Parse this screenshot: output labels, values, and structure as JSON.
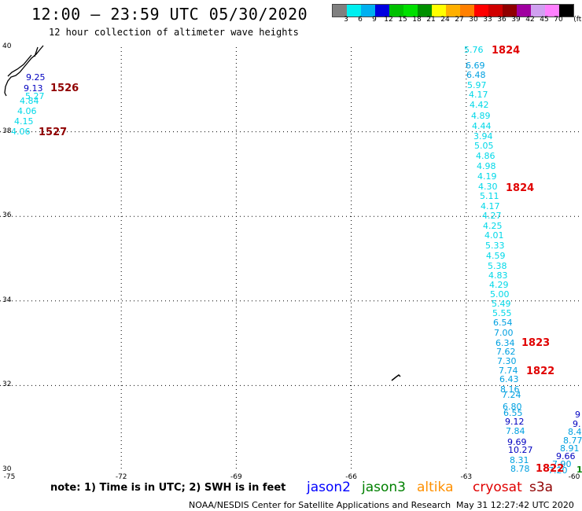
{
  "title": "12:00 – 23:59 UTC 05/30/2020",
  "subtitle": "12 hour collection of altimeter wave heights",
  "legend": {
    "colors": [
      "#808080",
      "#00f0f0",
      "#00b0f0",
      "#0000e0",
      "#00c000",
      "#00e000",
      "#009000",
      "#ffff00",
      "#ffb000",
      "#ff8000",
      "#ff0000",
      "#d00000",
      "#900000",
      "#a000a0",
      "#d0a0f0",
      "#ff80ff",
      "#000000"
    ],
    "ticks": [
      "3",
      "6",
      "9",
      "12",
      "15",
      "18",
      "21",
      "24",
      "27",
      "30",
      "33",
      "36",
      "39",
      "42",
      "45",
      "70",
      "(ft)"
    ]
  },
  "lat_labels": [
    "40",
    "38",
    "36",
    "34",
    "32",
    "30"
  ],
  "lon_labels": [
    "-75",
    "-72",
    "-69",
    "-66",
    "-63",
    "-60"
  ],
  "tracks": [
    {
      "satellite": "cryosat",
      "time": "1824",
      "color": "#d00000",
      "values": [
        "5.76",
        "6.69",
        "6.48",
        "5.97",
        "4.17",
        "4.42",
        "4.89",
        "4.44",
        "3.94",
        "5.05",
        "4.86",
        "4.98",
        "4.19",
        "4.30",
        "5.11",
        "4.17",
        "4.27",
        "4.25",
        "4.01",
        "5.33",
        "4.59",
        "5.38",
        "4.83",
        "4.29",
        "5.00",
        "5.49",
        "5.55",
        "6.54",
        "7.00",
        "6.34",
        "7.62",
        "7.30",
        "7.74",
        "6.43",
        "8.16",
        "7.24",
        "6.80",
        "6.55",
        "9.12",
        "7.84",
        "9.69",
        "10.27",
        "8.31",
        "8.78"
      ]
    },
    {
      "satellite": "s3a",
      "time": "1526",
      "color": "#900000",
      "values": [
        "9.25",
        "9.13",
        "5.27",
        "4.84",
        "4.06",
        "4.15",
        "4.06"
      ]
    },
    {
      "satellite": "s3a",
      "time_labels": [
        "1527"
      ]
    }
  ],
  "time_labels": [
    "1824",
    "1824",
    "1823",
    "1822",
    "1822",
    "1526",
    "1527"
  ],
  "east_values": [
    "9",
    "9.",
    "8.4",
    "8.77",
    "8.91",
    "9.66",
    "7.90",
    "7.20",
    "1"
  ],
  "note": "note: 1) Time is in UTC; 2) SWH is in feet",
  "satellites": [
    {
      "name": "jason2",
      "color": "#0000ff"
    },
    {
      "name": "jason3",
      "color": "#008000"
    },
    {
      "name": "altika",
      "color": "#ff9000"
    },
    {
      "name": "cryosat",
      "color": "#e00000"
    },
    {
      "name": "s3a",
      "color": "#900000"
    }
  ],
  "credit": "NOAA/NESDIS Center for Satellite Applications and Research",
  "timestamp": "May 31 12:27:42 UTC 2020"
}
